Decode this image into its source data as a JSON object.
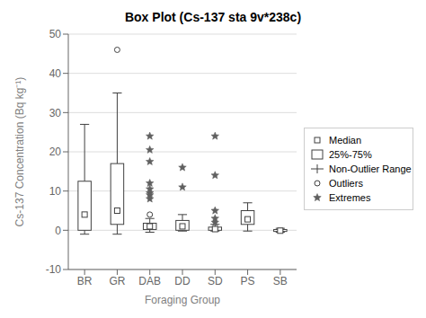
{
  "chart_data": {
    "type": "box",
    "title": "Box Plot (Cs-137 sta 9v*238c)",
    "x_label": "Foraging Group",
    "y_label": "Cs-137 Concentration (Bq kg⁻¹)",
    "categories": [
      "BR",
      "GR",
      "DAB",
      "DD",
      "SD",
      "PS",
      "SB"
    ],
    "ylim": [
      -10,
      50
    ],
    "yticks": [
      -10,
      0,
      10,
      20,
      30,
      40,
      50
    ],
    "grid": true,
    "legend": "right",
    "series": [
      {
        "name": "Median",
        "type": "median",
        "marker": "square",
        "color": "#404040",
        "values": [
          4.0,
          5.0,
          1.0,
          1.0,
          0.3,
          2.8,
          -0.1
        ]
      },
      {
        "name": "25%-75%",
        "type": "box",
        "color": "#404040",
        "values": [
          [
            0.0,
            12.5
          ],
          [
            1.5,
            17.0
          ],
          [
            0.2,
            1.8
          ],
          [
            0.0,
            2.5
          ],
          [
            0.0,
            0.8
          ],
          [
            1.5,
            5.0
          ],
          [
            -0.3,
            0.2
          ]
        ]
      },
      {
        "name": "Non-Outlier Range",
        "type": "whisker",
        "color": "#404040",
        "values": [
          [
            -1.0,
            27.0
          ],
          [
            -1.0,
            35.0
          ],
          [
            -0.5,
            3.0
          ],
          [
            -0.2,
            4.0
          ],
          [
            -0.2,
            1.5
          ],
          [
            -0.2,
            7.0
          ],
          [
            -0.5,
            0.5
          ]
        ]
      },
      {
        "name": "Outliers",
        "type": "outlier",
        "marker": "circle",
        "color": "#404040",
        "values": [
          [],
          [
            46.0
          ],
          [
            4.0
          ],
          [],
          [],
          [],
          []
        ]
      },
      {
        "name": "Extremes",
        "type": "extreme",
        "marker": "star",
        "color": "#606060",
        "values": [
          [],
          [],
          [
            8.0,
            9.0,
            9.5,
            10.5,
            12.0,
            17.5,
            20.5,
            24.0
          ],
          [
            11.0,
            16.0
          ],
          [
            2.0,
            3.0,
            5.0,
            14.0,
            24.0
          ],
          [],
          []
        ]
      }
    ]
  }
}
